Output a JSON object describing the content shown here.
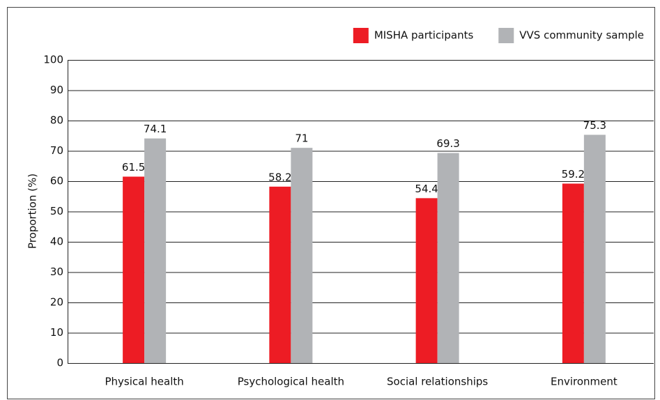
{
  "chart_data": {
    "type": "bar",
    "y_label": "Proportion (%)",
    "categories": [
      "Physical health",
      "Psychological health",
      "Social relationships",
      "Environment"
    ],
    "series": [
      {
        "name": "MISHA participants",
        "color": "#ed1c24",
        "values": [
          61.5,
          58.2,
          54.4,
          59.2
        ]
      },
      {
        "name": "VVS community sample",
        "color": "#b1b3b6",
        "values": [
          74.1,
          71,
          69.3,
          75.3
        ]
      }
    ],
    "ylim": [
      0,
      100
    ],
    "yticks": [
      0,
      10,
      20,
      30,
      40,
      50,
      60,
      70,
      80,
      90,
      100
    ],
    "grid": true,
    "legend": "top-right"
  }
}
